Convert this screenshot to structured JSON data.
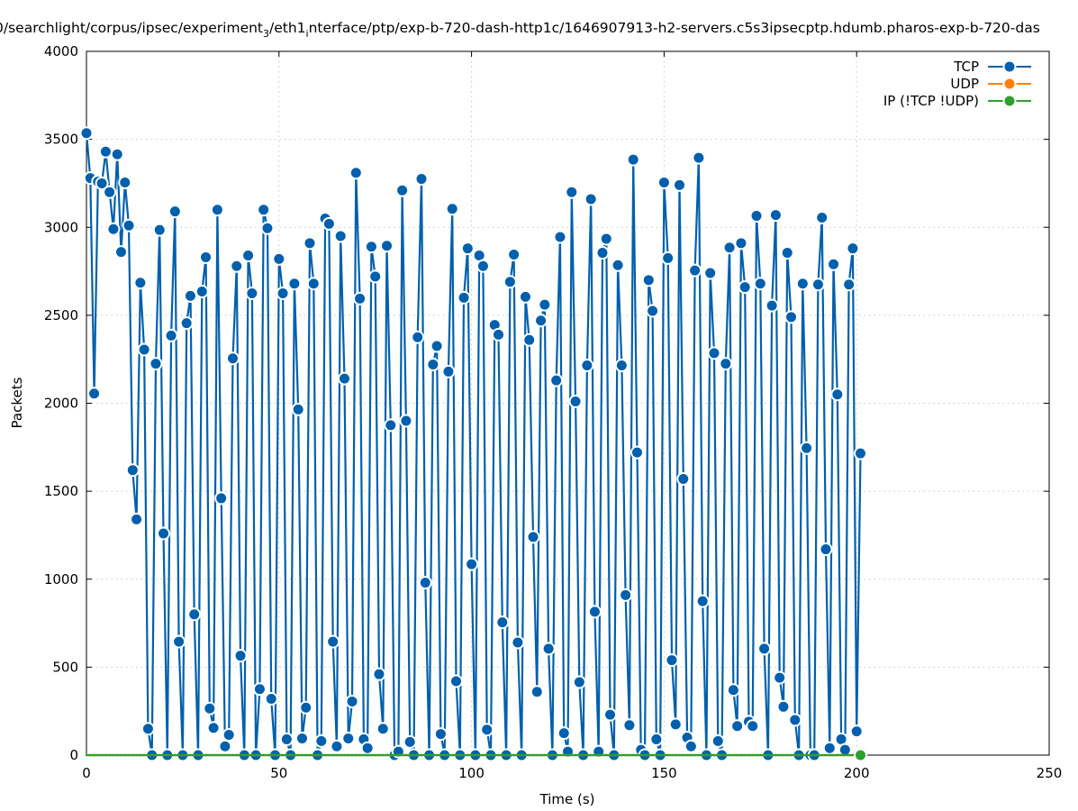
{
  "chart_data": {
    "type": "line",
    "title_segments": [
      {
        "text": "0/searchlight/corpus/ipsec/experiment",
        "sub": false
      },
      {
        "text": "3",
        "sub": true
      },
      {
        "text": "/eth1",
        "sub": false
      },
      {
        "text": "i",
        "sub": true
      },
      {
        "text": "nterface/ptp/exp-b-720-dash-http1c/1646907913-h2-servers.c5s3ipsecptp.hdumb.pharos-exp-b-720-das",
        "sub": false
      }
    ],
    "xlabel": "Time (s)",
    "ylabel": "Packets",
    "xlim": [
      0,
      250
    ],
    "ylim": [
      0,
      4000
    ],
    "xticks": [
      0,
      50,
      100,
      150,
      200,
      250
    ],
    "yticks": [
      0,
      500,
      1000,
      1500,
      2000,
      2500,
      3000,
      3500,
      4000
    ],
    "grid": true,
    "legend_position": "top-right",
    "x_start": 0,
    "x_step": 1,
    "series": [
      {
        "name": "TCP",
        "color": "#0060ad",
        "values": [
          3535,
          3280,
          2055,
          3260,
          3250,
          3430,
          3200,
          2990,
          3415,
          2860,
          3255,
          3010,
          1620,
          1340,
          2685,
          2305,
          150,
          0,
          2225,
          2985,
          1260,
          0,
          2385,
          3090,
          645,
          0,
          2455,
          2610,
          800,
          0,
          2635,
          2830,
          265,
          155,
          3100,
          1460,
          50,
          115,
          2255,
          2780,
          565,
          0,
          2840,
          2625,
          0,
          375,
          3100,
          2995,
          320,
          0,
          2820,
          2625,
          90,
          0,
          2680,
          1965,
          95,
          270,
          2910,
          2680,
          0,
          80,
          3050,
          3020,
          645,
          50,
          2950,
          2140,
          95,
          305,
          3310,
          2595,
          90,
          40,
          2890,
          2720,
          460,
          150,
          2895,
          1875,
          0,
          20,
          3210,
          1900,
          75,
          0,
          2375,
          3275,
          980,
          0,
          2220,
          2325,
          120,
          0,
          2180,
          3105,
          420,
          0,
          2600,
          2880,
          1085,
          0,
          2840,
          2780,
          145,
          0,
          2445,
          2390,
          755,
          0,
          2690,
          2845,
          640,
          0,
          2605,
          2360,
          1240,
          360,
          2470,
          2560,
          605,
          0,
          2130,
          2945,
          125,
          20,
          3200,
          2010,
          415,
          0,
          2215,
          3160,
          815,
          20,
          2855,
          2935,
          230,
          0,
          2785,
          2215,
          910,
          170,
          3385,
          1720,
          30,
          0,
          2700,
          2525,
          90,
          0,
          3255,
          2825,
          540,
          175,
          3240,
          1570,
          100,
          50,
          2755,
          3395,
          875,
          0,
          2740,
          2285,
          80,
          0,
          2225,
          2885,
          370,
          165,
          2910,
          2660,
          190,
          165,
          3065,
          2680,
          605,
          0,
          2555,
          3070,
          440,
          275,
          2855,
          2490,
          200,
          0,
          2680,
          1745,
          0,
          0,
          2675,
          3055,
          1170,
          40,
          2790,
          2050,
          90,
          30,
          2675,
          2880,
          135,
          1715
        ]
      },
      {
        "name": "UDP",
        "color": "#ff7f0e",
        "values": [
          0,
          0,
          0,
          0,
          0,
          0,
          0,
          0,
          0,
          0,
          0,
          0,
          0,
          0,
          0,
          0,
          0,
          0,
          0,
          0,
          0,
          0,
          0,
          0,
          0,
          0,
          0,
          0,
          0,
          0,
          0,
          0,
          0,
          0,
          0,
          0,
          0,
          0,
          0,
          0,
          0,
          0,
          0,
          0,
          0,
          0,
          0,
          0,
          0,
          0,
          0,
          0,
          0,
          0,
          0,
          0,
          0,
          0,
          0,
          0,
          0,
          0,
          0,
          0,
          0,
          0,
          0,
          0,
          0,
          0,
          0,
          0,
          0,
          0,
          0,
          0,
          0,
          0,
          0,
          0,
          0,
          0,
          0,
          0,
          0,
          0,
          0,
          0,
          0,
          0,
          0,
          0,
          0,
          0,
          0,
          0,
          0,
          0,
          0,
          0,
          0,
          0,
          0,
          0,
          0,
          0,
          0,
          0,
          0,
          0,
          0,
          0,
          0,
          0,
          0,
          0,
          0,
          0,
          0,
          0,
          0,
          0,
          0,
          0,
          0,
          0,
          0,
          0,
          0,
          0,
          0,
          0,
          0,
          0,
          0,
          0,
          0,
          0,
          0,
          0,
          0,
          0,
          0,
          0,
          0,
          0,
          0,
          0,
          0,
          0,
          0,
          0,
          0,
          0,
          0,
          0,
          0,
          0,
          0,
          0,
          0,
          0,
          0,
          0,
          0,
          0,
          0,
          0,
          0,
          0,
          0,
          0,
          0,
          0,
          0,
          0,
          0,
          0,
          0,
          0,
          0,
          0,
          0,
          0,
          0,
          0,
          0,
          0,
          0,
          0,
          0,
          0,
          0,
          0,
          0,
          0,
          0,
          0,
          0,
          0,
          0,
          0
        ]
      },
      {
        "name": "IP (!TCP  !UDP)",
        "color": "#2ca02c",
        "values": [
          0,
          0,
          0,
          0,
          0,
          0,
          0,
          0,
          0,
          0,
          0,
          0,
          0,
          0,
          0,
          0,
          0,
          0,
          0,
          0,
          0,
          0,
          0,
          0,
          0,
          0,
          0,
          0,
          0,
          0,
          0,
          0,
          0,
          0,
          0,
          0,
          0,
          0,
          0,
          0,
          0,
          0,
          0,
          0,
          0,
          0,
          0,
          0,
          0,
          0,
          0,
          0,
          0,
          0,
          0,
          0,
          0,
          0,
          0,
          0,
          0,
          0,
          0,
          0,
          0,
          0,
          0,
          0,
          0,
          0,
          0,
          0,
          0,
          0,
          0,
          0,
          0,
          0,
          0,
          0,
          0,
          0,
          0,
          0,
          0,
          0,
          0,
          0,
          0,
          0,
          0,
          0,
          0,
          0,
          0,
          0,
          0,
          0,
          0,
          0,
          0,
          0,
          0,
          0,
          0,
          0,
          0,
          0,
          0,
          0,
          0,
          0,
          0,
          0,
          0,
          0,
          0,
          0,
          0,
          0,
          0,
          0,
          0,
          0,
          0,
          0,
          0,
          0,
          0,
          0,
          0,
          0,
          0,
          0,
          0,
          0,
          0,
          0,
          0,
          0,
          0,
          0,
          0,
          0,
          0,
          0,
          0,
          0,
          0,
          0,
          0,
          0,
          0,
          0,
          0,
          0,
          0,
          0,
          0,
          0,
          0,
          0,
          0,
          0,
          0,
          0,
          0,
          0,
          0,
          0,
          0,
          0,
          0,
          0,
          0,
          0,
          0,
          0,
          0,
          0,
          0,
          0,
          0,
          0,
          0,
          0,
          0,
          0,
          0,
          0,
          0,
          0,
          0,
          0,
          0,
          0,
          0,
          0,
          0,
          0,
          0,
          0
        ]
      }
    ]
  }
}
